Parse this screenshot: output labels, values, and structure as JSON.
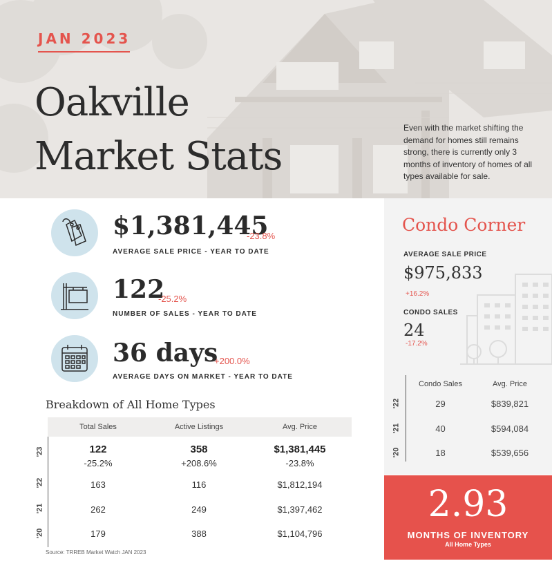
{
  "header": {
    "date": "JAN 2023",
    "title_line1": "Oakville",
    "title_line2": "Market Stats",
    "intro": "Even with the market shifting the demand for homes still remains strong, there is currently only 3 months of inventory of homes of all types available for sale."
  },
  "stats": [
    {
      "icon": "price-tag-icon",
      "value": "$1,381,445",
      "change": "-23.8%",
      "label": "AVERAGE SALE PRICE - YEAR TO DATE"
    },
    {
      "icon": "sale-sign-icon",
      "value": "122",
      "change": "-25.2%",
      "label": "NUMBER OF SALES - YEAR TO DATE"
    },
    {
      "icon": "calendar-icon",
      "value": "36 days",
      "change": "+200.0%",
      "label": "AVERAGE DAYS ON MARKET - YEAR TO DATE"
    }
  ],
  "breakdown": {
    "title": "Breakdown of All Home Types",
    "headers": [
      "Total Sales",
      "Active Listings",
      "Avg. Price"
    ],
    "rows": [
      {
        "year": "'23",
        "sales": "122",
        "sales_chg": "-25.2%",
        "listings": "358",
        "listings_chg": "+208.6%",
        "price": "$1,381,445",
        "price_chg": "-23.8%"
      },
      {
        "year": "'22",
        "sales": "163",
        "listings": "116",
        "price": "$1,812,194"
      },
      {
        "year": "'21",
        "sales": "262",
        "listings": "249",
        "price": "$1,397,462"
      },
      {
        "year": "'20",
        "sales": "179",
        "listings": "388",
        "price": "$1,104,796"
      }
    ],
    "source": "Source: TRREB Market Watch JAN 2023"
  },
  "condo": {
    "title": "Condo Corner",
    "avg_label": "AVERAGE SALE PRICE",
    "avg_value": "$975,833",
    "avg_change": "+16.2%",
    "sales_label": "CONDO SALES",
    "sales_value": "24",
    "sales_change": "-17.2%",
    "table_headers": [
      "Condo Sales",
      "Avg. Price"
    ],
    "table_rows": [
      {
        "year": "'22",
        "sales": "29",
        "price": "$839,821"
      },
      {
        "year": "'21",
        "sales": "40",
        "price": "$594,084"
      },
      {
        "year": "'20",
        "sales": "18",
        "price": "$539,656"
      }
    ]
  },
  "inventory": {
    "value": "2.93",
    "label": "MONTHS OF INVENTORY",
    "sub": "All Home Types"
  },
  "colors": {
    "accent": "#e4544d",
    "circle": "#cfe3ec"
  }
}
